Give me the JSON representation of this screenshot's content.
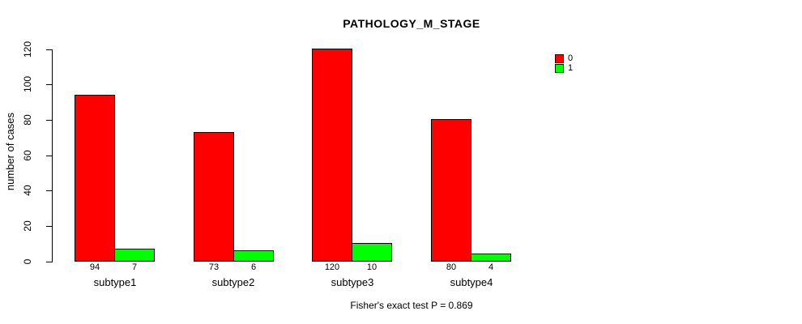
{
  "chart_data": {
    "type": "bar",
    "title": "PATHOLOGY_M_STAGE",
    "ylabel": "number of cases",
    "xlabel": "",
    "categories": [
      "subtype1",
      "subtype2",
      "subtype3",
      "subtype4"
    ],
    "series": [
      {
        "name": "0",
        "color": "#ff0000",
        "values": [
          94,
          73,
          120,
          80
        ]
      },
      {
        "name": "1",
        "color": "#00ff00",
        "values": [
          7,
          6,
          10,
          4
        ]
      }
    ],
    "ylim": [
      0,
      120
    ],
    "yticks": [
      0,
      20,
      40,
      60,
      80,
      100,
      120
    ],
    "grid": false,
    "legend_position": "right",
    "bar_border_color": "#000000",
    "axis_color": "#000000",
    "background_color": "#ffffff",
    "footnote": "Fisher's exact test P = 0.869"
  }
}
